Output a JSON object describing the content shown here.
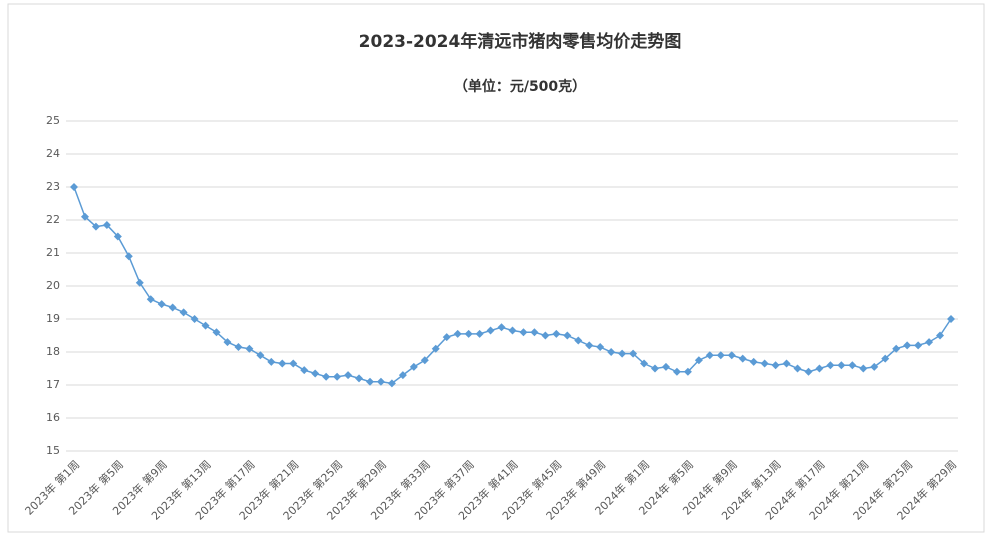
{
  "chart_data": {
    "type": "line",
    "title": "2023-2024年清远市猪肉零售均价走势图",
    "subtitle": "（单位：元/500克）",
    "categories": [
      "2023年 第1周",
      null,
      null,
      null,
      "2023年 第5周",
      null,
      null,
      null,
      "2023年 第9周",
      null,
      null,
      null,
      "2023年 第13周",
      null,
      null,
      null,
      "2023年 第17周",
      null,
      null,
      null,
      "2023年 第21周",
      null,
      null,
      null,
      "2023年 第25周",
      null,
      null,
      null,
      "2023年 第29周",
      null,
      null,
      null,
      "2023年 第33周",
      null,
      null,
      null,
      "2023年 第37周",
      null,
      null,
      null,
      "2023年 第41周",
      null,
      null,
      null,
      "2023年 第45周",
      null,
      null,
      null,
      "2023年 第49周",
      null,
      null,
      null,
      "2024年 第1周",
      null,
      null,
      null,
      "2024年 第5周",
      null,
      null,
      null,
      "2024年 第9周",
      null,
      null,
      null,
      "2024年 第13周",
      null,
      null,
      null,
      "2024年 第17周",
      null,
      null,
      null,
      "2024年 第21周",
      null,
      null,
      null,
      "2024年 第25周",
      null,
      null,
      null,
      "2024年 第29周"
    ],
    "series": [
      {
        "color": "#5b9bd5",
        "values": [
          23.0,
          22.1,
          21.8,
          21.85,
          21.5,
          20.9,
          20.1,
          19.6,
          19.45,
          19.35,
          19.2,
          19.0,
          18.8,
          18.6,
          18.3,
          18.15,
          18.1,
          17.9,
          17.7,
          17.65,
          17.65,
          17.45,
          17.35,
          17.25,
          17.25,
          17.3,
          17.2,
          17.1,
          17.1,
          17.05,
          17.3,
          17.55,
          17.75,
          18.1,
          18.45,
          18.55,
          18.55,
          18.55,
          18.65,
          18.75,
          18.65,
          18.6,
          18.6,
          18.5,
          18.55,
          18.5,
          18.35,
          18.2,
          18.15,
          18.0,
          17.95,
          17.95,
          17.65,
          17.5,
          17.55,
          17.4,
          17.4,
          17.75,
          17.9,
          17.9,
          17.9,
          17.8,
          17.7,
          17.65,
          17.6,
          17.65,
          17.5,
          17.4,
          17.5,
          17.6,
          17.6,
          17.6,
          17.5,
          17.55,
          17.8,
          18.1,
          18.2,
          18.2,
          18.3,
          18.5,
          19.0
        ]
      }
    ],
    "ylim": [
      15,
      25
    ],
    "yticks": [
      15,
      16,
      17,
      18,
      19,
      20,
      21,
      22,
      23,
      24,
      25
    ],
    "grid": true
  }
}
